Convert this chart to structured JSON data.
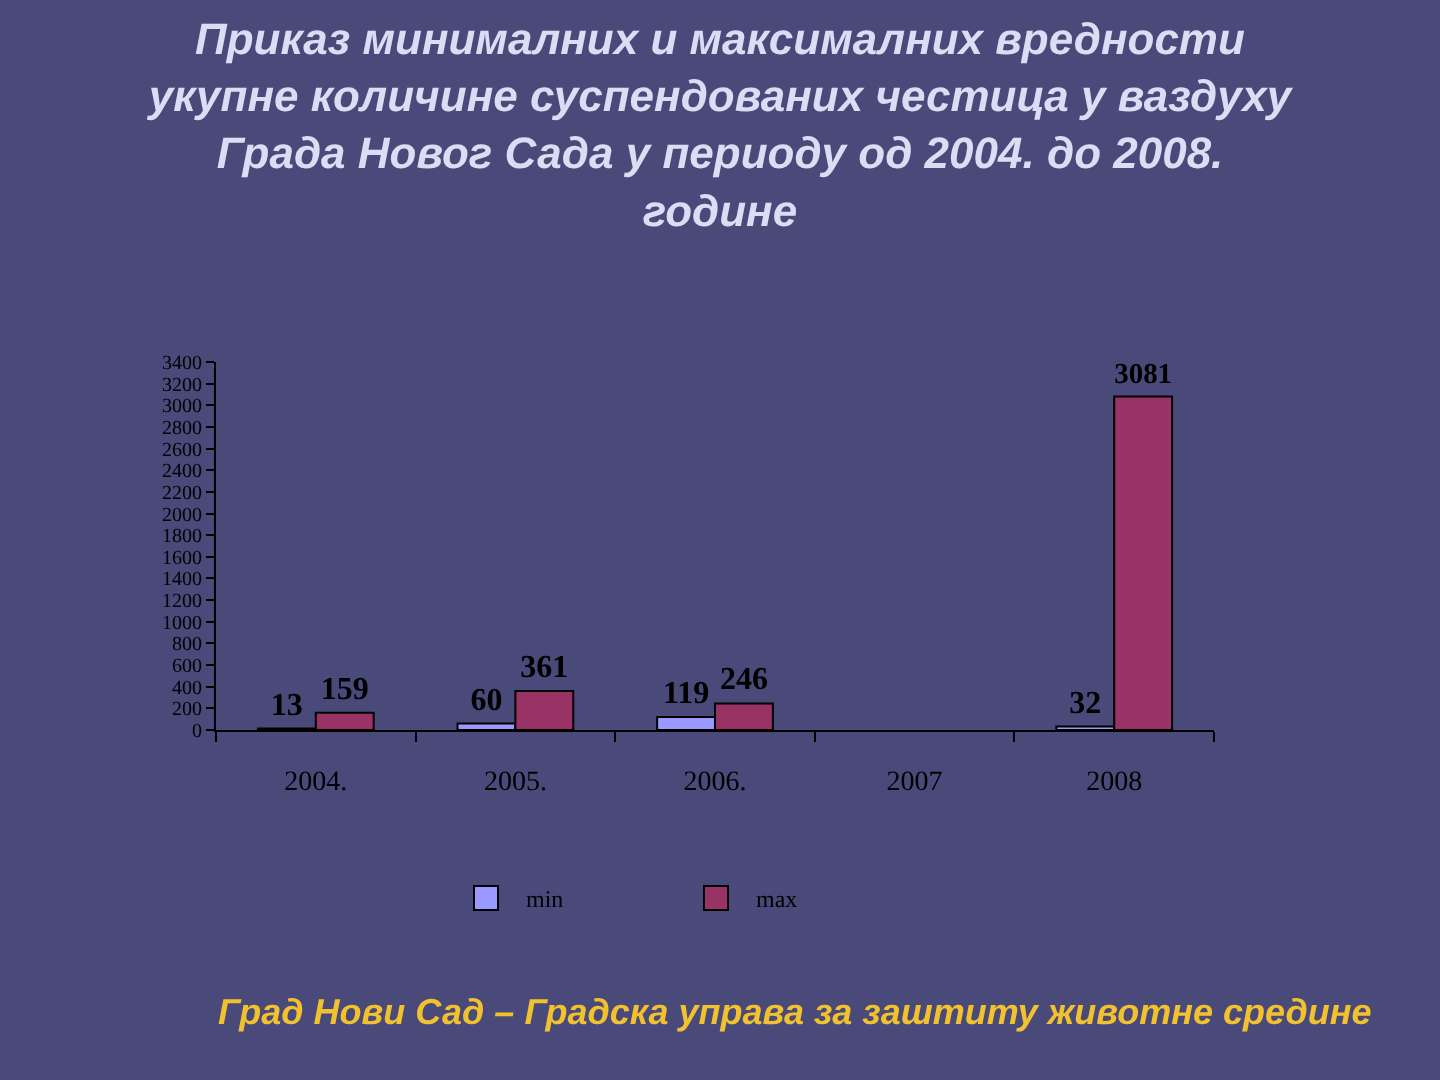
{
  "chart_data": {
    "type": "bar",
    "title": "Приказ минималних и максималних вредности\nукупне количине суспендованих честица у ваздуху\nГрада Новог Сада у периоду од 2004. до 2008.\nгодине",
    "categories": [
      "2004.",
      "2005.",
      "2006.",
      "2007",
      "2008"
    ],
    "series": [
      {
        "name": "min",
        "color": "#9999ff",
        "values": [
          13,
          60,
          119,
          null,
          32
        ]
      },
      {
        "name": "max",
        "color": "#993366",
        "values": [
          159,
          361,
          246,
          null,
          3081
        ]
      }
    ],
    "ylim": [
      0,
      3400
    ],
    "yticks": [
      0,
      200,
      400,
      600,
      800,
      1000,
      1200,
      1400,
      1600,
      1800,
      2000,
      2200,
      2400,
      2600,
      2800,
      3000,
      3200,
      3400
    ],
    "data_labels": true,
    "legend": "bottom",
    "grid": false,
    "annotations": [
      "Град Нови Сад – Градска управа за заштиту животне средине"
    ]
  }
}
